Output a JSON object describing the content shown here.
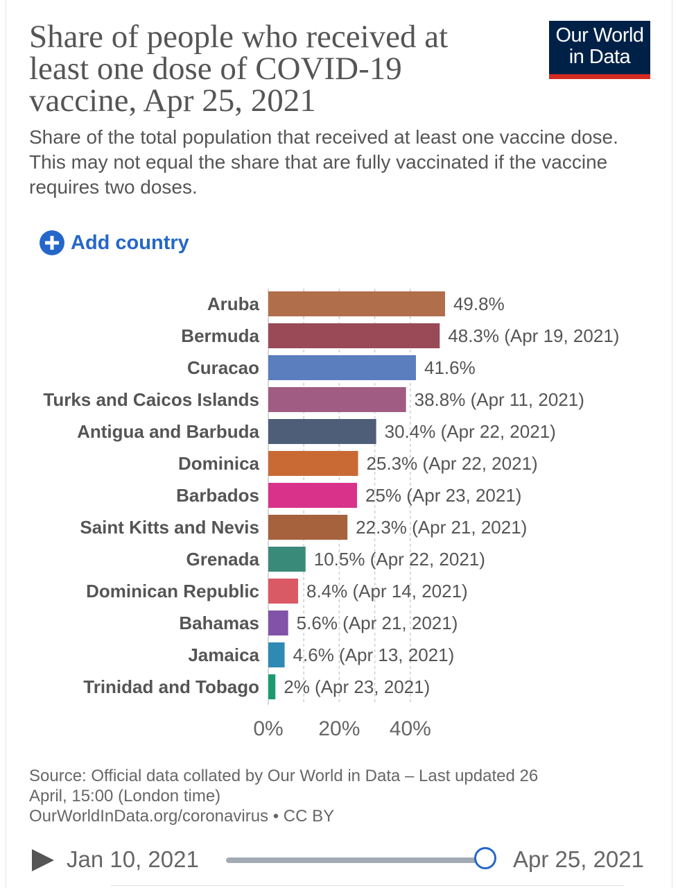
{
  "header": {
    "title": "Share of people who received at least one dose of COVID-19 vaccine, Apr 25, 2021",
    "subtitle": "Share of the total population that received at least one vaccine dose. This may not equal the share that are fully vaccinated if the vaccine requires two doses.",
    "logo_line1": "Our World",
    "logo_line2": "in Data",
    "logo_bg": "#002147",
    "logo_accent": "#d42b21"
  },
  "controls": {
    "add_country_label": "Add country",
    "add_icon": "plus-circle-icon",
    "accent": "#2567c9"
  },
  "chart_data": {
    "type": "bar",
    "orientation": "horizontal",
    "categories": [
      "Aruba",
      "Bermuda",
      "Curacao",
      "Turks and Caicos Islands",
      "Antigua and Barbuda",
      "Dominica",
      "Barbados",
      "Saint Kitts and Nevis",
      "Grenada",
      "Dominican Republic",
      "Bahamas",
      "Jamaica",
      "Trinidad and Tobago"
    ],
    "values": [
      49.8,
      48.3,
      41.6,
      38.8,
      30.4,
      25.3,
      25,
      22.3,
      10.5,
      8.4,
      5.6,
      4.6,
      2
    ],
    "value_labels": [
      "49.8%",
      "48.3% (Apr 19, 2021)",
      "41.6%",
      "38.8% (Apr 11, 2021)",
      "30.4% (Apr 22, 2021)",
      "25.3% (Apr 22, 2021)",
      "25% (Apr 23, 2021)",
      "22.3% (Apr 21, 2021)",
      "10.5% (Apr 22, 2021)",
      "8.4% (Apr 14, 2021)",
      "5.6% (Apr 21, 2021)",
      "4.6% (Apr 13, 2021)",
      "2% (Apr 23, 2021)"
    ],
    "colors": [
      "#b16e4a",
      "#9a4a56",
      "#5b7ebe",
      "#a05c82",
      "#4e5d78",
      "#c96a35",
      "#d8328a",
      "#a6623c",
      "#3a8a7a",
      "#d95965",
      "#8152a8",
      "#2e89b5",
      "#1b9a72"
    ],
    "xlim": [
      0,
      50
    ],
    "x_ticks": [
      0,
      10,
      20,
      30,
      40
    ],
    "x_tick_labels": [
      "0%",
      "20%",
      "40%"
    ],
    "x_tick_label_values": [
      0,
      20,
      40
    ],
    "grid": true,
    "grid_style": "dashed"
  },
  "footer": {
    "source_line1": "Source: Official data collated by Our World in Data – Last updated 26",
    "source_line2": "April, 15:00 (London time)",
    "source_line3": "OurWorldInData.org/coronavirus • CC BY"
  },
  "timeline": {
    "start_label": "Jan 10, 2021",
    "end_label": "Apr 25, 2021",
    "position": 1.0,
    "play_icon": "play-icon"
  }
}
